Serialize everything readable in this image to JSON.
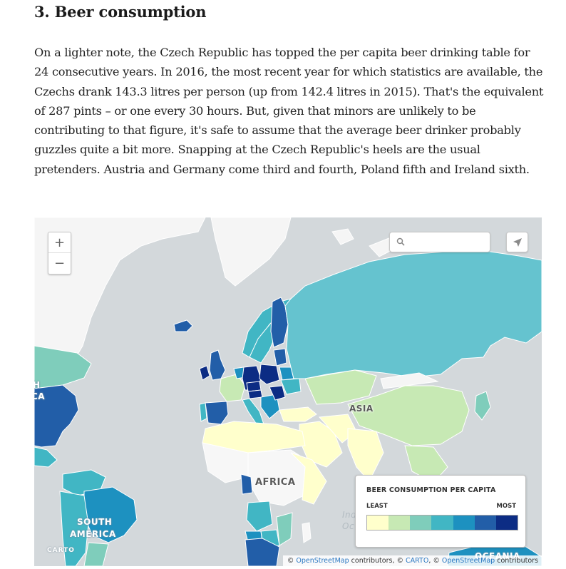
{
  "article": {
    "heading": "3. Beer consumption",
    "paragraph": "On a lighter note, the Czech Republic has topped the per capita beer drinking table for 24 consecutive years. In 2016, the most recent year for which statistics are available, the Czechs drank 143.3 litres per person (up from 142.4 litres in 2015). That's the equivalent of 287 pints – or one every 30 hours. But, given that minors are unlikely to be contributing to that figure, it's safe to assume that the average beer drinker probably guzzles quite a bit more. Snapping at the Czech Republic's heels are the usual pretenders. Austria and Germany come third and fourth, Poland fifth and Ireland sixth."
  },
  "map": {
    "controls": {
      "zoom_in": "+",
      "zoom_out": "−",
      "search_placeholder": "",
      "search_icon": "magnifier-icon",
      "locate_icon": "paper-plane-icon"
    },
    "labels": {
      "asia": "ASIA",
      "africa": "AFRICA",
      "south_america_1": "SOUTH",
      "south_america_2": "AMERICA",
      "north_america_fragment_1": "H",
      "north_america_fragment_2": "CA",
      "indian_ocean_1": "Ind",
      "indian_ocean_2": "Oc",
      "oceania": "OCEANIA"
    },
    "legend": {
      "title": "BEER CONSUMPTION PER CAPITA",
      "min_label": "LEAST",
      "max_label": "MOST",
      "colors": [
        "#ffffcc",
        "#c7e9b4",
        "#7fcdbb",
        "#41b6c4",
        "#1d91c0",
        "#225ea8",
        "#0c2c84"
      ]
    },
    "brand": "CARTO",
    "attribution": {
      "prefix": "© ",
      "osm_link_1": "OpenStreetMap",
      "text_1": " contributors, © ",
      "carto_link": "CARTO",
      "text_2": ", © ",
      "osm_link_2": "OpenStreetMap",
      "text_3": " contributors"
    },
    "colors": {
      "water": "#d3d8db",
      "no_data": "#f7f7f7"
    }
  }
}
